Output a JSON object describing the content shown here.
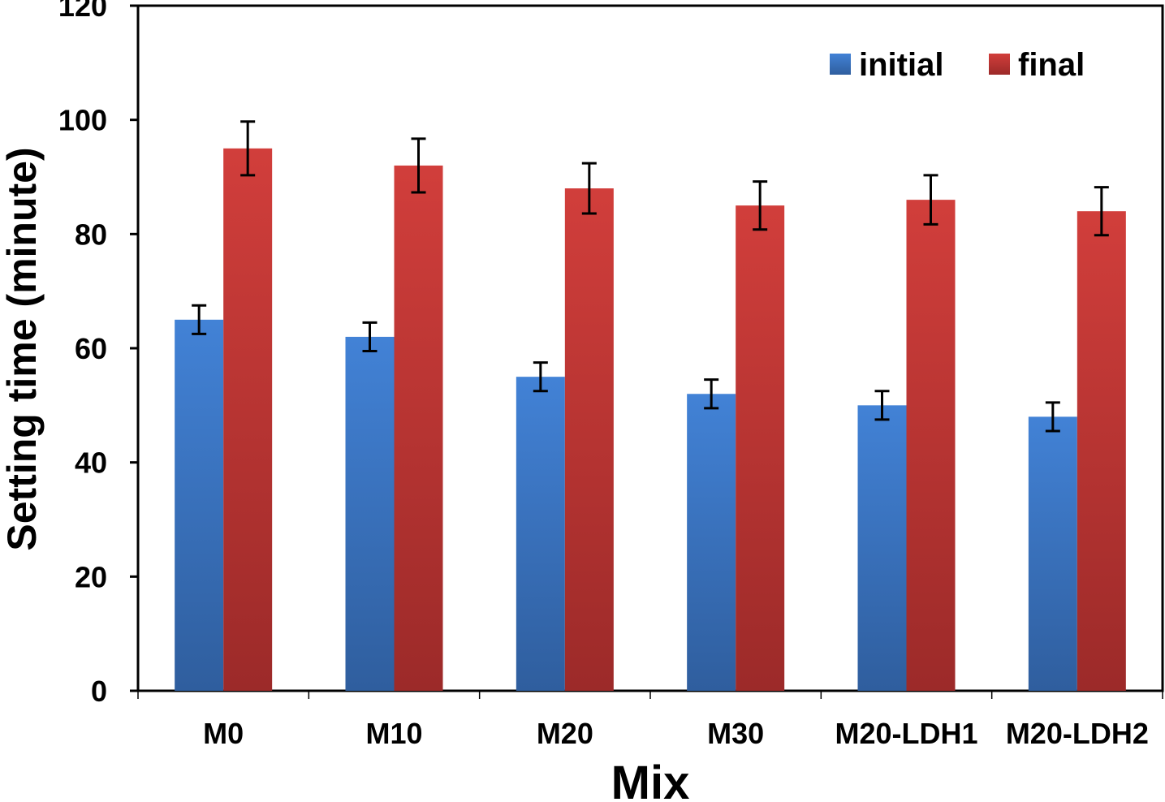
{
  "chart_data": {
    "type": "bar",
    "title": "",
    "xlabel": "Mix",
    "ylabel": "Setting time (minute)",
    "ylim": [
      0,
      120
    ],
    "yticks": [
      0,
      20,
      40,
      60,
      80,
      100,
      120
    ],
    "grid": false,
    "legend_position": "top-right",
    "categories": [
      "M0",
      "M10",
      "M20",
      "M30",
      "M20-LDH1",
      "M20-LDH2"
    ],
    "series": [
      {
        "name": "initial",
        "color": "#3a78c8",
        "values": [
          65,
          62,
          55,
          52,
          50,
          48
        ],
        "errors": [
          2.5,
          2.5,
          2.5,
          2.5,
          2.5,
          2.5
        ]
      },
      {
        "name": "final",
        "color": "#c93a38",
        "values": [
          95,
          92,
          88,
          85,
          86,
          84
        ],
        "errors": [
          4.7,
          4.7,
          4.4,
          4.2,
          4.3,
          4.2
        ]
      }
    ]
  }
}
